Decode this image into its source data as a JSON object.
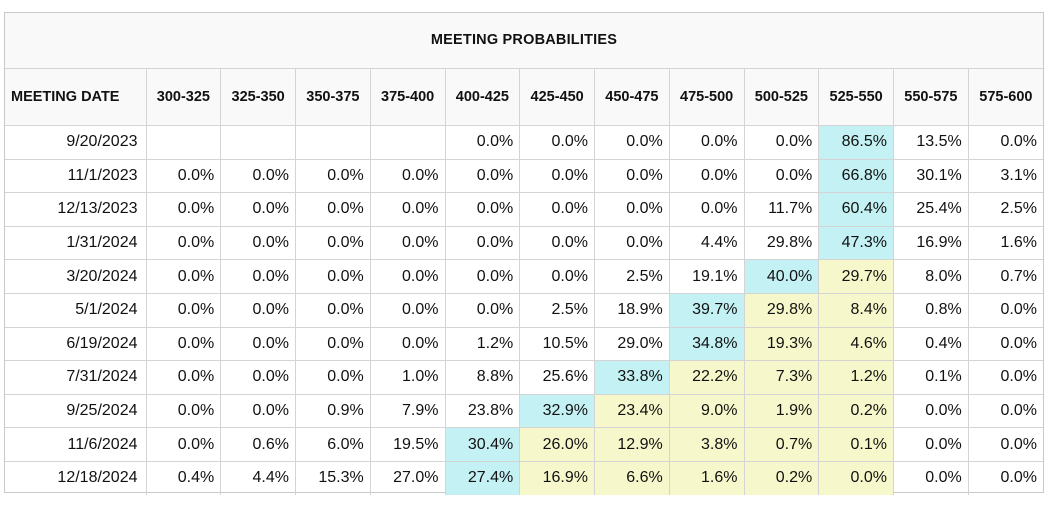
{
  "title": "MEETING PROBABILITIES",
  "header": {
    "date_label": "MEETING DATE",
    "ranges": [
      "300-325",
      "325-350",
      "350-375",
      "375-400",
      "400-425",
      "425-450",
      "450-475",
      "475-500",
      "500-525",
      "525-550",
      "550-575",
      "575-600"
    ]
  },
  "colors": {
    "highlight_max": "#c4f1f4",
    "highlight_band": "#f6f8cb"
  },
  "rows": [
    {
      "date": "9/20/2023",
      "cells": [
        "",
        "",
        "",
        "",
        "0.0%",
        "0.0%",
        "0.0%",
        "0.0%",
        "0.0%",
        "86.5%",
        "13.5%",
        "0.0%"
      ],
      "hl": [
        "",
        "",
        "",
        "",
        "",
        "",
        "",
        "",
        "",
        "b",
        "",
        ""
      ]
    },
    {
      "date": "11/1/2023",
      "cells": [
        "0.0%",
        "0.0%",
        "0.0%",
        "0.0%",
        "0.0%",
        "0.0%",
        "0.0%",
        "0.0%",
        "0.0%",
        "66.8%",
        "30.1%",
        "3.1%"
      ],
      "hl": [
        "",
        "",
        "",
        "",
        "",
        "",
        "",
        "",
        "",
        "b",
        "",
        ""
      ]
    },
    {
      "date": "12/13/2023",
      "cells": [
        "0.0%",
        "0.0%",
        "0.0%",
        "0.0%",
        "0.0%",
        "0.0%",
        "0.0%",
        "0.0%",
        "11.7%",
        "60.4%",
        "25.4%",
        "2.5%"
      ],
      "hl": [
        "",
        "",
        "",
        "",
        "",
        "",
        "",
        "",
        "",
        "b",
        "",
        ""
      ]
    },
    {
      "date": "1/31/2024",
      "cells": [
        "0.0%",
        "0.0%",
        "0.0%",
        "0.0%",
        "0.0%",
        "0.0%",
        "0.0%",
        "4.4%",
        "29.8%",
        "47.3%",
        "16.9%",
        "1.6%"
      ],
      "hl": [
        "",
        "",
        "",
        "",
        "",
        "",
        "",
        "",
        "",
        "b",
        "",
        ""
      ]
    },
    {
      "date": "3/20/2024",
      "cells": [
        "0.0%",
        "0.0%",
        "0.0%",
        "0.0%",
        "0.0%",
        "0.0%",
        "2.5%",
        "19.1%",
        "40.0%",
        "29.7%",
        "8.0%",
        "0.7%"
      ],
      "hl": [
        "",
        "",
        "",
        "",
        "",
        "",
        "",
        "",
        "b",
        "y",
        "",
        ""
      ]
    },
    {
      "date": "5/1/2024",
      "cells": [
        "0.0%",
        "0.0%",
        "0.0%",
        "0.0%",
        "0.0%",
        "2.5%",
        "18.9%",
        "39.7%",
        "29.8%",
        "8.4%",
        "0.8%",
        "0.0%"
      ],
      "hl": [
        "",
        "",
        "",
        "",
        "",
        "",
        "",
        "b",
        "y",
        "y",
        "",
        ""
      ]
    },
    {
      "date": "6/19/2024",
      "cells": [
        "0.0%",
        "0.0%",
        "0.0%",
        "0.0%",
        "1.2%",
        "10.5%",
        "29.0%",
        "34.8%",
        "19.3%",
        "4.6%",
        "0.4%",
        "0.0%"
      ],
      "hl": [
        "",
        "",
        "",
        "",
        "",
        "",
        "",
        "b",
        "y",
        "y",
        "",
        ""
      ]
    },
    {
      "date": "7/31/2024",
      "cells": [
        "0.0%",
        "0.0%",
        "0.0%",
        "1.0%",
        "8.8%",
        "25.6%",
        "33.8%",
        "22.2%",
        "7.3%",
        "1.2%",
        "0.1%",
        "0.0%"
      ],
      "hl": [
        "",
        "",
        "",
        "",
        "",
        "",
        "b",
        "y",
        "y",
        "y",
        "",
        ""
      ]
    },
    {
      "date": "9/25/2024",
      "cells": [
        "0.0%",
        "0.0%",
        "0.9%",
        "7.9%",
        "23.8%",
        "32.9%",
        "23.4%",
        "9.0%",
        "1.9%",
        "0.2%",
        "0.0%",
        "0.0%"
      ],
      "hl": [
        "",
        "",
        "",
        "",
        "",
        "b",
        "y",
        "y",
        "y",
        "y",
        "",
        ""
      ]
    },
    {
      "date": "11/6/2024",
      "cells": [
        "0.0%",
        "0.6%",
        "6.0%",
        "19.5%",
        "30.4%",
        "26.0%",
        "12.9%",
        "3.8%",
        "0.7%",
        "0.1%",
        "0.0%",
        "0.0%"
      ],
      "hl": [
        "",
        "",
        "",
        "",
        "b",
        "y",
        "y",
        "y",
        "y",
        "y",
        "",
        ""
      ]
    },
    {
      "date": "12/18/2024",
      "cells": [
        "0.4%",
        "4.4%",
        "15.3%",
        "27.0%",
        "27.4%",
        "16.9%",
        "6.6%",
        "1.6%",
        "0.2%",
        "0.0%",
        "0.0%",
        "0.0%"
      ],
      "hl": [
        "",
        "",
        "",
        "",
        "b",
        "y",
        "y",
        "y",
        "y",
        "y",
        "",
        ""
      ]
    }
  ]
}
